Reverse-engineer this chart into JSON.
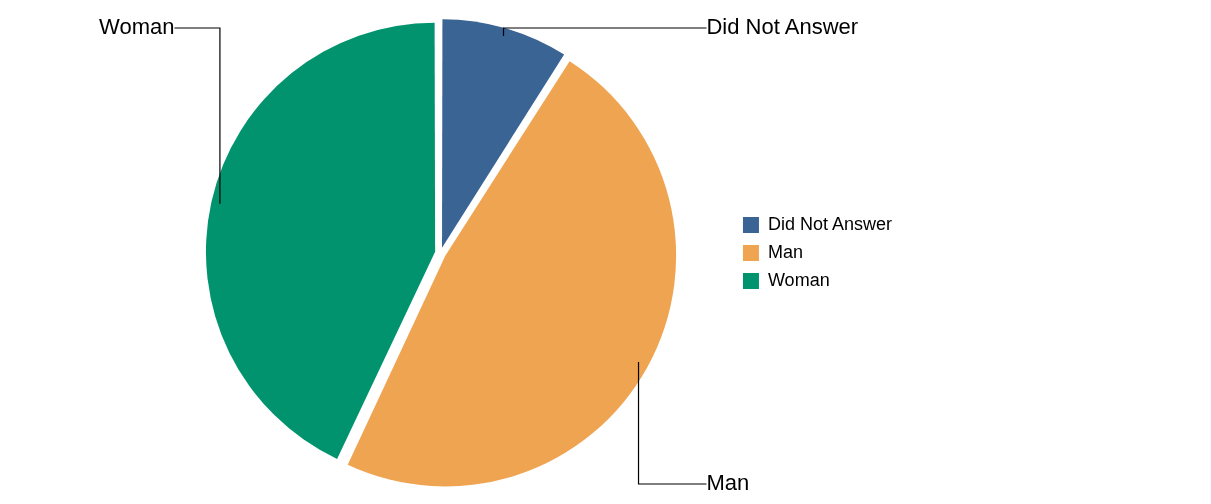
{
  "chart_data": {
    "type": "pie",
    "categories": [
      "Did Not Answer",
      "Man",
      "Woman"
    ],
    "values": [
      9,
      48,
      43
    ],
    "colors": [
      "#3a6494",
      "#efa451",
      "#00936e"
    ],
    "legend": "right"
  }
}
